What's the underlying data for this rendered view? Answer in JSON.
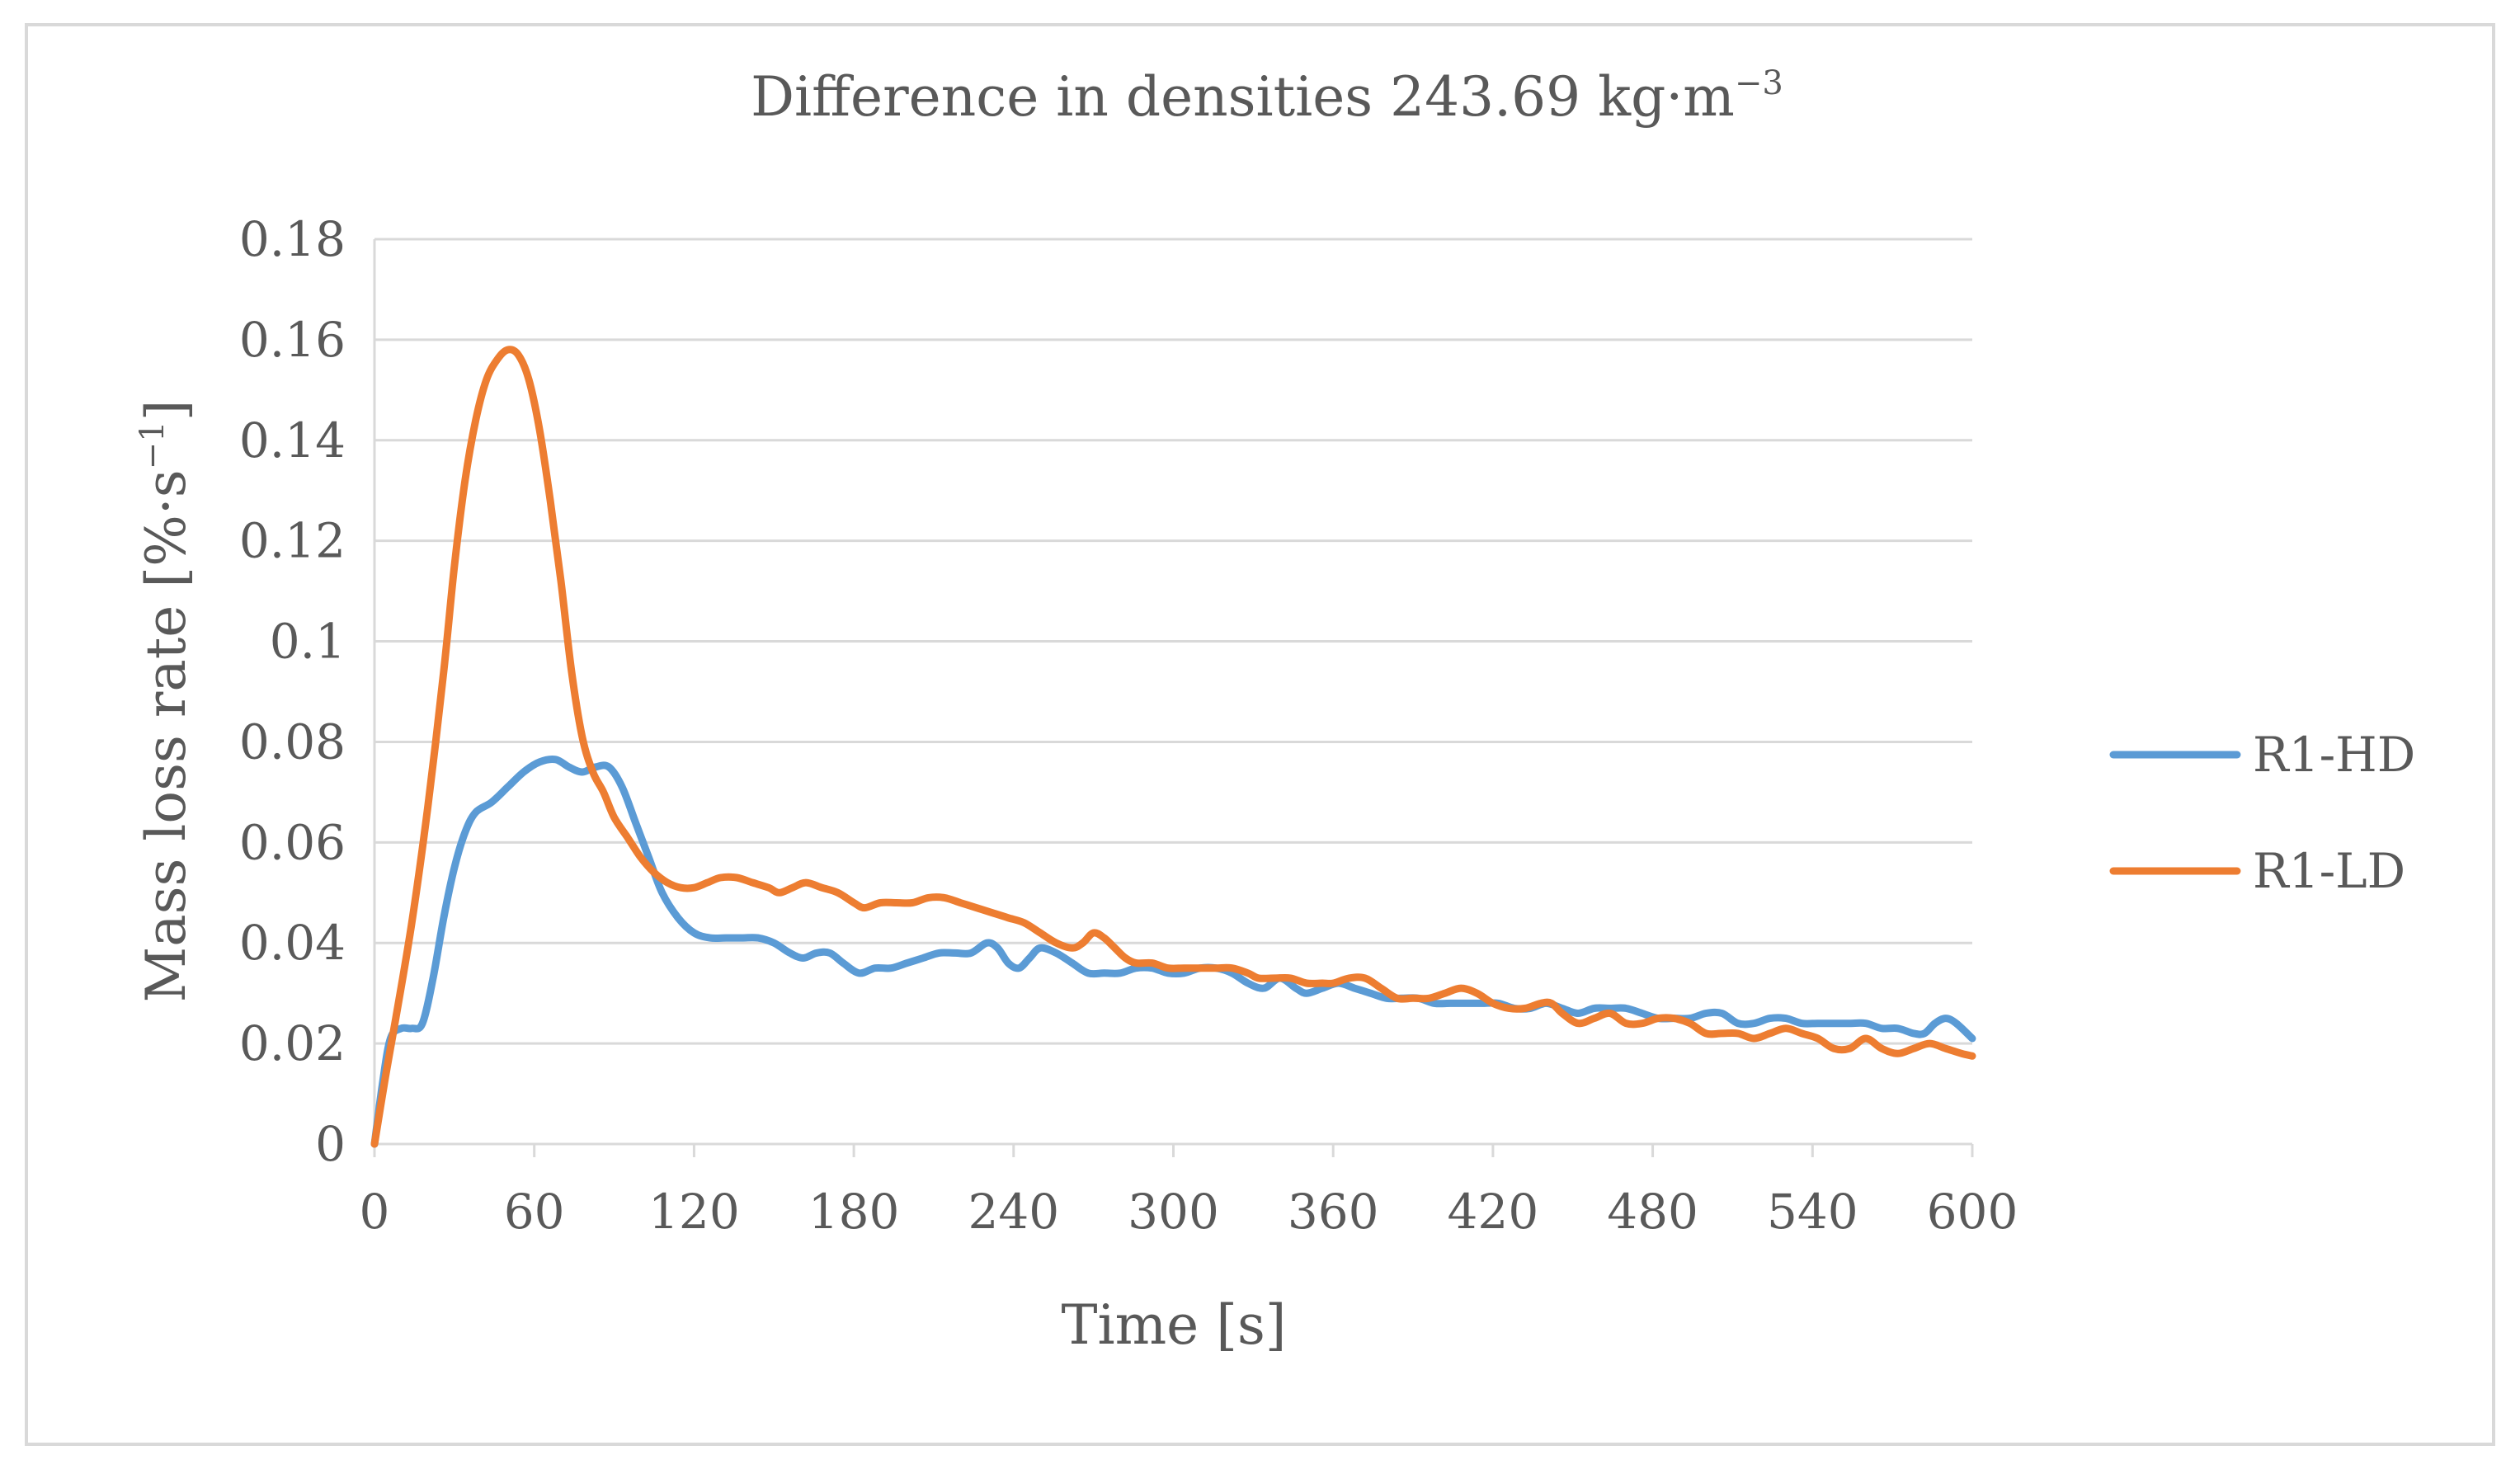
{
  "chart_data": {
    "type": "line",
    "title": "Difference in densities 243.69 kg·m",
    "title_sup": "−3",
    "xlabel": "Time [s]",
    "ylabel": "Mass loss rate [%·s",
    "ylabel_sup": "−1",
    "ylabel_end": "]",
    "xlim": [
      0,
      600
    ],
    "ylim": [
      0,
      0.18
    ],
    "x_ticks": [
      0,
      60,
      120,
      180,
      240,
      300,
      360,
      420,
      480,
      540,
      600
    ],
    "x_tick_labels": [
      "0",
      "60",
      "120",
      "180",
      "240",
      "300",
      "360",
      "420",
      "480",
      "540",
      "600"
    ],
    "y_ticks": [
      0,
      0.02,
      0.04,
      0.06,
      0.08,
      0.1,
      0.12,
      0.14,
      0.16,
      0.18
    ],
    "y_tick_labels": [
      "0",
      "0.02",
      "0.04",
      "0.06",
      "0.08",
      "0.1",
      "0.12",
      "0.14",
      "0.16",
      "0.18"
    ],
    "grid": "horizontal",
    "legend_position": "right",
    "series": [
      {
        "name": "R1-HD",
        "color": "#5b9bd5",
        "points": [
          [
            0,
            0
          ],
          [
            3,
            0.012
          ],
          [
            6,
            0.021
          ],
          [
            10,
            0.023
          ],
          [
            14,
            0.023
          ],
          [
            18,
            0.024
          ],
          [
            22,
            0.033
          ],
          [
            26,
            0.045
          ],
          [
            30,
            0.055
          ],
          [
            34,
            0.062
          ],
          [
            38,
            0.066
          ],
          [
            44,
            0.068
          ],
          [
            50,
            0.071
          ],
          [
            56,
            0.074
          ],
          [
            62,
            0.076
          ],
          [
            68,
            0.0765
          ],
          [
            73,
            0.075
          ],
          [
            78,
            0.074
          ],
          [
            83,
            0.075
          ],
          [
            88,
            0.075
          ],
          [
            93,
            0.071
          ],
          [
            98,
            0.064
          ],
          [
            103,
            0.057
          ],
          [
            108,
            0.05
          ],
          [
            114,
            0.045
          ],
          [
            120,
            0.042
          ],
          [
            126,
            0.041
          ],
          [
            132,
            0.041
          ],
          [
            138,
            0.041
          ],
          [
            144,
            0.041
          ],
          [
            150,
            0.04
          ],
          [
            156,
            0.038
          ],
          [
            161,
            0.037
          ],
          [
            166,
            0.038
          ],
          [
            171,
            0.038
          ],
          [
            176,
            0.036
          ],
          [
            182,
            0.034
          ],
          [
            188,
            0.035
          ],
          [
            194,
            0.035
          ],
          [
            200,
            0.036
          ],
          [
            206,
            0.037
          ],
          [
            212,
            0.038
          ],
          [
            218,
            0.038
          ],
          [
            224,
            0.038
          ],
          [
            230,
            0.04
          ],
          [
            234,
            0.039
          ],
          [
            238,
            0.036
          ],
          [
            242,
            0.035
          ],
          [
            246,
            0.037
          ],
          [
            250,
            0.039
          ],
          [
            256,
            0.038
          ],
          [
            262,
            0.036
          ],
          [
            268,
            0.034
          ],
          [
            274,
            0.034
          ],
          [
            280,
            0.034
          ],
          [
            286,
            0.035
          ],
          [
            292,
            0.035
          ],
          [
            298,
            0.034
          ],
          [
            304,
            0.034
          ],
          [
            310,
            0.035
          ],
          [
            316,
            0.035
          ],
          [
            322,
            0.034
          ],
          [
            328,
            0.032
          ],
          [
            334,
            0.031
          ],
          [
            340,
            0.033
          ],
          [
            346,
            0.031
          ],
          [
            350,
            0.03
          ],
          [
            356,
            0.031
          ],
          [
            362,
            0.032
          ],
          [
            368,
            0.031
          ],
          [
            374,
            0.03
          ],
          [
            380,
            0.029
          ],
          [
            386,
            0.029
          ],
          [
            392,
            0.029
          ],
          [
            398,
            0.028
          ],
          [
            404,
            0.028
          ],
          [
            410,
            0.028
          ],
          [
            416,
            0.028
          ],
          [
            422,
            0.028
          ],
          [
            428,
            0.027
          ],
          [
            434,
            0.027
          ],
          [
            440,
            0.028
          ],
          [
            446,
            0.027
          ],
          [
            452,
            0.026
          ],
          [
            458,
            0.027
          ],
          [
            464,
            0.027
          ],
          [
            470,
            0.027
          ],
          [
            476,
            0.026
          ],
          [
            482,
            0.025
          ],
          [
            488,
            0.025
          ],
          [
            494,
            0.025
          ],
          [
            500,
            0.026
          ],
          [
            506,
            0.026
          ],
          [
            512,
            0.024
          ],
          [
            518,
            0.024
          ],
          [
            524,
            0.025
          ],
          [
            530,
            0.025
          ],
          [
            536,
            0.024
          ],
          [
            542,
            0.024
          ],
          [
            548,
            0.024
          ],
          [
            554,
            0.024
          ],
          [
            560,
            0.024
          ],
          [
            566,
            0.023
          ],
          [
            572,
            0.023
          ],
          [
            578,
            0.022
          ],
          [
            582,
            0.022
          ],
          [
            586,
            0.024
          ],
          [
            590,
            0.025
          ],
          [
            594,
            0.024
          ],
          [
            600,
            0.021
          ]
        ]
      },
      {
        "name": "R1-LD",
        "color": "#ed7d31",
        "points": [
          [
            0,
            0
          ],
          [
            4,
            0.013
          ],
          [
            8,
            0.025
          ],
          [
            14,
            0.044
          ],
          [
            20,
            0.067
          ],
          [
            26,
            0.094
          ],
          [
            30,
            0.115
          ],
          [
            34,
            0.132
          ],
          [
            38,
            0.144
          ],
          [
            42,
            0.152
          ],
          [
            46,
            0.156
          ],
          [
            50,
            0.158
          ],
          [
            54,
            0.157
          ],
          [
            58,
            0.152
          ],
          [
            62,
            0.142
          ],
          [
            66,
            0.128
          ],
          [
            70,
            0.112
          ],
          [
            74,
            0.094
          ],
          [
            78,
            0.081
          ],
          [
            82,
            0.074
          ],
          [
            86,
            0.07
          ],
          [
            90,
            0.065
          ],
          [
            95,
            0.061
          ],
          [
            100,
            0.057
          ],
          [
            105,
            0.054
          ],
          [
            110,
            0.052
          ],
          [
            115,
            0.051
          ],
          [
            120,
            0.051
          ],
          [
            125,
            0.052
          ],
          [
            130,
            0.053
          ],
          [
            136,
            0.053
          ],
          [
            142,
            0.052
          ],
          [
            148,
            0.051
          ],
          [
            152,
            0.05
          ],
          [
            157,
            0.051
          ],
          [
            162,
            0.052
          ],
          [
            168,
            0.051
          ],
          [
            174,
            0.05
          ],
          [
            180,
            0.048
          ],
          [
            184,
            0.047
          ],
          [
            190,
            0.048
          ],
          [
            196,
            0.048
          ],
          [
            202,
            0.048
          ],
          [
            208,
            0.049
          ],
          [
            214,
            0.049
          ],
          [
            220,
            0.048
          ],
          [
            226,
            0.047
          ],
          [
            232,
            0.046
          ],
          [
            238,
            0.045
          ],
          [
            244,
            0.044
          ],
          [
            250,
            0.042
          ],
          [
            256,
            0.04
          ],
          [
            262,
            0.039
          ],
          [
            266,
            0.04
          ],
          [
            270,
            0.042
          ],
          [
            274,
            0.041
          ],
          [
            278,
            0.039
          ],
          [
            282,
            0.037
          ],
          [
            286,
            0.036
          ],
          [
            292,
            0.036
          ],
          [
            298,
            0.035
          ],
          [
            304,
            0.035
          ],
          [
            310,
            0.035
          ],
          [
            316,
            0.035
          ],
          [
            322,
            0.035
          ],
          [
            328,
            0.034
          ],
          [
            332,
            0.033
          ],
          [
            338,
            0.033
          ],
          [
            344,
            0.033
          ],
          [
            350,
            0.032
          ],
          [
            356,
            0.032
          ],
          [
            360,
            0.032
          ],
          [
            366,
            0.033
          ],
          [
            372,
            0.033
          ],
          [
            378,
            0.031
          ],
          [
            384,
            0.029
          ],
          [
            390,
            0.029
          ],
          [
            396,
            0.029
          ],
          [
            402,
            0.03
          ],
          [
            408,
            0.031
          ],
          [
            414,
            0.03
          ],
          [
            420,
            0.028
          ],
          [
            426,
            0.027
          ],
          [
            432,
            0.027
          ],
          [
            438,
            0.028
          ],
          [
            442,
            0.028
          ],
          [
            446,
            0.026
          ],
          [
            452,
            0.024
          ],
          [
            458,
            0.025
          ],
          [
            464,
            0.026
          ],
          [
            470,
            0.024
          ],
          [
            476,
            0.024
          ],
          [
            482,
            0.025
          ],
          [
            488,
            0.025
          ],
          [
            494,
            0.024
          ],
          [
            500,
            0.022
          ],
          [
            506,
            0.022
          ],
          [
            512,
            0.022
          ],
          [
            518,
            0.021
          ],
          [
            524,
            0.022
          ],
          [
            530,
            0.023
          ],
          [
            536,
            0.022
          ],
          [
            542,
            0.021
          ],
          [
            548,
            0.019
          ],
          [
            554,
            0.019
          ],
          [
            560,
            0.021
          ],
          [
            566,
            0.019
          ],
          [
            572,
            0.018
          ],
          [
            578,
            0.019
          ],
          [
            584,
            0.02
          ],
          [
            590,
            0.019
          ],
          [
            596,
            0.018
          ],
          [
            600,
            0.0175
          ]
        ]
      }
    ]
  }
}
